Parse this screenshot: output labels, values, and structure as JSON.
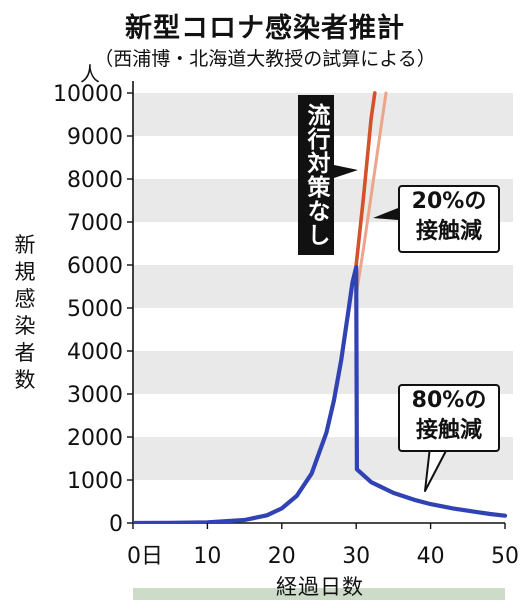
{
  "title": "新型コロナ感染者推計",
  "subtitle": "（西浦博・北海道大教授の試算による）",
  "unit_label": "人",
  "ylabel": "新規感染者数",
  "xlabel": "経過日数",
  "annotations": {
    "no_countermeasures": "流行対策なし",
    "reduce20_line1": "20%の",
    "reduce20_line2": "接触減",
    "reduce80_line1": "80%の",
    "reduce80_line2": "接触減"
  },
  "colors": {
    "no_countermeasures": "#d4512a",
    "reduce20": "#eba58a",
    "reduce80": "#3142b4",
    "band": "#e9e9e9",
    "xaxis_bar": "#cddbc9"
  },
  "chart_data": {
    "type": "line",
    "xlim": [
      0,
      50
    ],
    "ylim": [
      0,
      10000
    ],
    "xticks": [
      0,
      10,
      20,
      30,
      40,
      50
    ],
    "xtick_labels": [
      "0日",
      "10",
      "20",
      "30",
      "40",
      "50"
    ],
    "yticks": [
      0,
      1000,
      2000,
      3000,
      4000,
      5000,
      6000,
      7000,
      8000,
      9000,
      10000
    ],
    "ytick_labels": [
      "0",
      "1000",
      "2000",
      "3000",
      "4000",
      "5000",
      "6000",
      "7000",
      "8000",
      "9000",
      "10000"
    ],
    "grid": "alternating horizontal bands",
    "series": [
      {
        "name": "流行対策なし",
        "x": [
          30,
          31,
          32,
          32.5
        ],
        "y": [
          6000,
          7600,
          9400,
          10000
        ]
      },
      {
        "name": "20%の接触減",
        "x": [
          30,
          31,
          32,
          33,
          34
        ],
        "y": [
          5300,
          6400,
          7600,
          8800,
          10000
        ]
      },
      {
        "name": "80%の接触減",
        "x": [
          0,
          5,
          10,
          15,
          18,
          20,
          22,
          24,
          26,
          27,
          28,
          29,
          29.5,
          30,
          30.1,
          32,
          35,
          38,
          40,
          43,
          46,
          48,
          50
        ],
        "y": [
          0,
          3,
          15,
          70,
          180,
          340,
          630,
          1150,
          2100,
          2850,
          3800,
          5000,
          5600,
          5950,
          1250,
          950,
          700,
          530,
          440,
          340,
          260,
          210,
          170
        ]
      }
    ]
  }
}
